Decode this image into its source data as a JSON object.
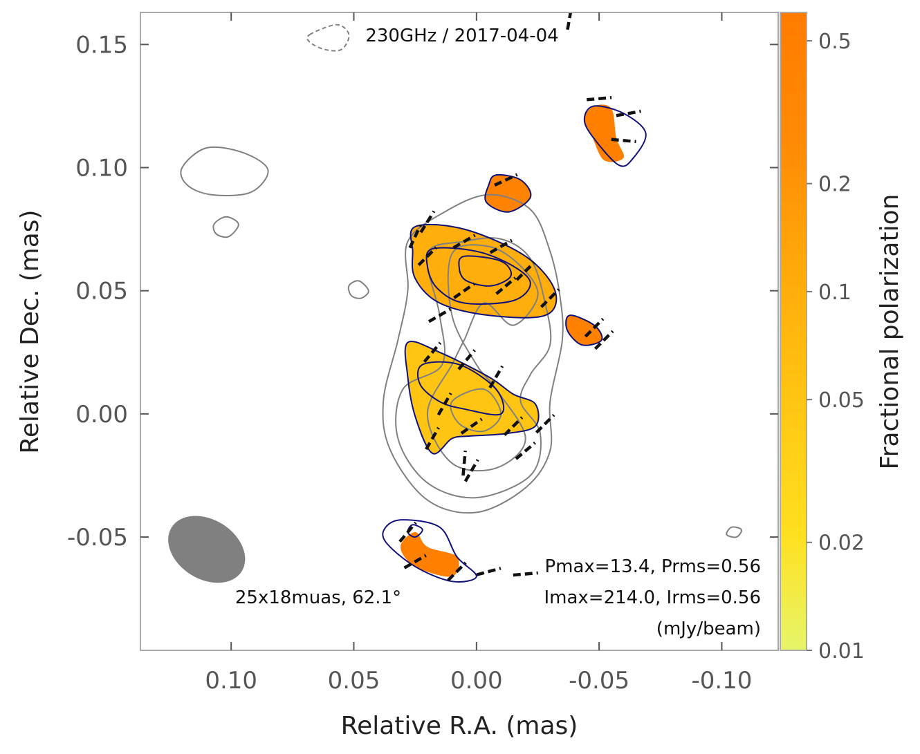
{
  "chart_data": {
    "type": "polarization_map",
    "title": "230GHz / 2017-04-04",
    "xlabel": "Relative R.A. (mas)",
    "ylabel": "Relative Dec. (mas)",
    "xlim": [
      0.137,
      -0.123
    ],
    "ylim": [
      -0.096,
      0.163
    ],
    "xticks": [
      0.1,
      0.05,
      0.0,
      -0.05,
      -0.1
    ],
    "xtick_labels": [
      "0.10",
      "0.05",
      "0.00",
      "-0.05",
      "-0.10"
    ],
    "yticks": [
      0.15,
      0.1,
      0.05,
      0.0,
      -0.05
    ],
    "ytick_labels": [
      "0.15",
      "0.10",
      "0.05",
      "0.00",
      "-0.05"
    ],
    "colorbar": {
      "label": "Fractional polarization",
      "scale": "log",
      "range": [
        0.01,
        0.6
      ],
      "ticks": [
        0.01,
        0.02,
        0.05,
        0.1,
        0.2,
        0.5
      ],
      "tick_labels": [
        "0.01",
        "0.02",
        "0.05",
        "0.1",
        "0.2",
        "0.5"
      ],
      "colors": [
        "#e6f56a",
        "#ffe020",
        "#ffc412",
        "#ffa90a",
        "#ff8a05",
        "#ff7c00"
      ]
    },
    "beam": {
      "label": "25x18muas, 62.1°",
      "major_muas": 25,
      "minor_muas": 18,
      "pa_deg": 62.1,
      "center": [
        0.11,
        -0.055
      ]
    },
    "stats": {
      "line1": "Pmax=13.4, Prms=0.56",
      "line2": "Imax=214.0, Irms=0.56",
      "line3": "(mJy/beam)"
    },
    "total_intensity_contours": [
      {
        "color": "#808080",
        "points": [
          [
            0.028,
            0.07
          ],
          [
            0.013,
            0.082
          ],
          [
            -0.005,
            0.089
          ],
          [
            -0.022,
            0.083
          ],
          [
            -0.03,
            0.066
          ],
          [
            -0.034,
            0.048
          ],
          [
            -0.035,
            0.03
          ],
          [
            -0.03,
            0.005
          ],
          [
            -0.03,
            -0.015
          ],
          [
            -0.02,
            -0.03
          ],
          [
            0.0,
            -0.04
          ],
          [
            0.02,
            -0.035
          ],
          [
            0.035,
            -0.015
          ],
          [
            0.038,
            0.005
          ],
          [
            0.032,
            0.03
          ],
          [
            0.028,
            0.05
          ]
        ]
      },
      {
        "color": "#808080",
        "points": [
          [
            0.02,
            0.065
          ],
          [
            0.005,
            0.07
          ],
          [
            -0.01,
            0.071
          ],
          [
            -0.022,
            0.063
          ],
          [
            -0.028,
            0.045
          ],
          [
            -0.03,
            0.028
          ],
          [
            -0.022,
            0.016
          ],
          [
            -0.018,
            0.005
          ],
          [
            -0.026,
            -0.008
          ],
          [
            -0.022,
            -0.025
          ],
          [
            0.0,
            -0.034
          ],
          [
            0.02,
            -0.028
          ],
          [
            0.032,
            -0.01
          ],
          [
            0.03,
            0.01
          ],
          [
            0.014,
            0.02
          ],
          [
            0.015,
            0.04
          ]
        ]
      },
      {
        "color": "#808080",
        "points": [
          [
            0.01,
            0.065
          ],
          [
            -0.005,
            0.068
          ],
          [
            -0.018,
            0.06
          ],
          [
            -0.025,
            0.048
          ],
          [
            -0.015,
            0.036
          ],
          [
            -0.003,
            0.045
          ],
          [
            0.005,
            0.03
          ],
          [
            0.01,
            0.02
          ],
          [
            0.02,
            0.0
          ],
          [
            0.01,
            -0.02
          ],
          [
            -0.008,
            -0.022
          ],
          [
            -0.02,
            -0.01
          ],
          [
            -0.008,
            0.01
          ],
          [
            0.0,
            0.02
          ],
          [
            0.01,
            0.04
          ]
        ]
      },
      {
        "color": "#808080",
        "points": [
          [
            0.01,
            0.005
          ],
          [
            -0.003,
            0.01
          ],
          [
            -0.01,
            0.0
          ],
          [
            -0.003,
            -0.007
          ],
          [
            0.007,
            -0.004
          ]
        ]
      },
      {
        "color": "#808080",
        "points": [
          [
            0.12,
            0.1
          ],
          [
            0.11,
            0.108
          ],
          [
            0.095,
            0.106
          ],
          [
            0.085,
            0.099
          ],
          [
            0.092,
            0.09
          ],
          [
            0.108,
            0.089
          ],
          [
            0.118,
            0.093
          ]
        ]
      },
      {
        "color": "#808080",
        "points": [
          [
            0.107,
            0.077
          ],
          [
            0.102,
            0.08
          ],
          [
            0.097,
            0.077
          ],
          [
            0.101,
            0.072
          ],
          [
            0.106,
            0.073
          ]
        ]
      },
      {
        "color": "#808080",
        "points": [
          [
            0.052,
            0.052
          ],
          [
            0.048,
            0.054
          ],
          [
            0.044,
            0.05
          ],
          [
            0.047,
            0.047
          ],
          [
            0.051,
            0.048
          ]
        ]
      },
      {
        "color": "#808080",
        "points": [
          [
            -0.104,
            -0.046
          ],
          [
            -0.108,
            -0.047
          ],
          [
            -0.106,
            -0.05
          ],
          [
            -0.102,
            -0.049
          ]
        ]
      }
    ],
    "polarized_intensity_contours": [
      {
        "color": "#10107a",
        "points": [
          [
            0.025,
            0.076
          ],
          [
            0.005,
            0.075
          ],
          [
            -0.02,
            0.064
          ],
          [
            -0.032,
            0.05
          ],
          [
            -0.028,
            0.04
          ],
          [
            -0.005,
            0.04
          ],
          [
            0.015,
            0.045
          ],
          [
            0.025,
            0.055
          ],
          [
            0.026,
            0.066
          ]
        ]
      },
      {
        "color": "#10107a",
        "points": [
          [
            0.018,
            0.067
          ],
          [
            0.0,
            0.066
          ],
          [
            -0.015,
            0.06
          ],
          [
            -0.022,
            0.053
          ],
          [
            -0.015,
            0.046
          ],
          [
            0.005,
            0.045
          ],
          [
            0.016,
            0.051
          ],
          [
            0.02,
            0.06
          ]
        ]
      },
      {
        "color": "#10107a",
        "points": [
          [
            0.005,
            0.064
          ],
          [
            -0.01,
            0.062
          ],
          [
            -0.014,
            0.056
          ],
          [
            -0.006,
            0.052
          ],
          [
            0.004,
            0.054
          ],
          [
            0.007,
            0.059
          ]
        ]
      },
      {
        "color": "#10107a",
        "points": [
          [
            0.028,
            0.029
          ],
          [
            0.015,
            0.025
          ],
          [
            -0.005,
            0.015
          ],
          [
            -0.015,
            0.008
          ],
          [
            -0.024,
            0.004
          ],
          [
            -0.024,
            -0.005
          ],
          [
            -0.012,
            -0.008
          ],
          [
            0.003,
            -0.009
          ],
          [
            0.01,
            -0.01
          ],
          [
            0.018,
            -0.016
          ],
          [
            0.025,
            -0.001
          ],
          [
            0.028,
            0.015
          ]
        ]
      },
      {
        "color": "#10107a",
        "points": [
          [
            0.022,
            0.02
          ],
          [
            0.007,
            0.02
          ],
          [
            -0.008,
            0.01
          ],
          [
            -0.01,
            0.0
          ],
          [
            0.005,
            0.002
          ],
          [
            0.015,
            0.005
          ],
          [
            0.023,
            0.012
          ]
        ]
      },
      {
        "color": "#10107a",
        "points": [
          [
            -0.008,
            0.097
          ],
          [
            -0.018,
            0.095
          ],
          [
            -0.022,
            0.088
          ],
          [
            -0.013,
            0.082
          ],
          [
            -0.004,
            0.086
          ],
          [
            -0.005,
            0.093
          ]
        ]
      },
      {
        "color": "#10107a",
        "points": [
          [
            -0.048,
            0.125
          ],
          [
            -0.06,
            0.122
          ],
          [
            -0.069,
            0.114
          ],
          [
            -0.064,
            0.104
          ],
          [
            -0.058,
            0.101
          ],
          [
            -0.047,
            0.113
          ],
          [
            -0.044,
            0.12
          ]
        ]
      },
      {
        "color": "#10107a",
        "points": [
          [
            -0.038,
            0.04
          ],
          [
            -0.048,
            0.036
          ],
          [
            -0.051,
            0.03
          ],
          [
            -0.043,
            0.028
          ],
          [
            -0.037,
            0.034
          ]
        ]
      },
      {
        "color": "#10107a",
        "points": [
          [
            0.03,
            -0.043
          ],
          [
            0.015,
            -0.046
          ],
          [
            0.008,
            -0.058
          ],
          [
            0.0,
            -0.066
          ],
          [
            0.01,
            -0.068
          ],
          [
            0.025,
            -0.062
          ],
          [
            0.037,
            -0.052
          ],
          [
            0.037,
            -0.046
          ]
        ]
      },
      {
        "color": "#10107a",
        "points": [
          [
            0.026,
            -0.045
          ],
          [
            0.022,
            -0.047
          ],
          [
            0.025,
            -0.05
          ],
          [
            0.028,
            -0.048
          ]
        ]
      }
    ],
    "fractional_pol_regions": [
      {
        "frac": 0.1,
        "points": [
          [
            0.025,
            0.076
          ],
          [
            0.005,
            0.075
          ],
          [
            -0.02,
            0.064
          ],
          [
            -0.032,
            0.05
          ],
          [
            -0.028,
            0.04
          ],
          [
            -0.005,
            0.04
          ],
          [
            0.015,
            0.045
          ],
          [
            0.025,
            0.055
          ],
          [
            0.026,
            0.066
          ]
        ]
      },
      {
        "frac": 0.05,
        "points": [
          [
            0.028,
            0.029
          ],
          [
            0.015,
            0.025
          ],
          [
            -0.005,
            0.015
          ],
          [
            -0.015,
            0.008
          ],
          [
            -0.024,
            0.004
          ],
          [
            -0.024,
            -0.005
          ],
          [
            -0.012,
            -0.008
          ],
          [
            0.003,
            -0.009
          ],
          [
            0.01,
            -0.01
          ],
          [
            0.018,
            -0.016
          ],
          [
            0.025,
            -0.001
          ],
          [
            0.028,
            0.015
          ]
        ]
      },
      {
        "frac": 0.4,
        "points": [
          [
            -0.008,
            0.097
          ],
          [
            -0.018,
            0.095
          ],
          [
            -0.022,
            0.088
          ],
          [
            -0.013,
            0.082
          ],
          [
            -0.004,
            0.086
          ],
          [
            -0.005,
            0.093
          ]
        ]
      },
      {
        "frac": 0.5,
        "points": [
          [
            -0.048,
            0.125
          ],
          [
            -0.055,
            0.124
          ],
          [
            -0.057,
            0.112
          ],
          [
            -0.06,
            0.104
          ],
          [
            -0.052,
            0.103
          ],
          [
            -0.047,
            0.113
          ],
          [
            -0.044,
            0.12
          ]
        ]
      },
      {
        "frac": 0.45,
        "points": [
          [
            -0.038,
            0.04
          ],
          [
            -0.048,
            0.036
          ],
          [
            -0.051,
            0.03
          ],
          [
            -0.043,
            0.028
          ],
          [
            -0.037,
            0.034
          ]
        ]
      },
      {
        "frac": 0.5,
        "points": [
          [
            0.025,
            -0.048
          ],
          [
            0.02,
            -0.054
          ],
          [
            0.008,
            -0.058
          ],
          [
            0.01,
            -0.066
          ],
          [
            0.025,
            -0.062
          ],
          [
            0.031,
            -0.054
          ]
        ]
      }
    ],
    "evpa_ticks": [
      {
        "x": 0.02,
        "y": 0.078,
        "angle": -58
      },
      {
        "x": 0.005,
        "y": 0.07,
        "angle": -30
      },
      {
        "x": -0.01,
        "y": 0.068,
        "angle": -30
      },
      {
        "x": -0.02,
        "y": 0.058,
        "angle": -45
      },
      {
        "x": 0.02,
        "y": 0.064,
        "angle": -45
      },
      {
        "x": 0.005,
        "y": 0.05,
        "angle": -35
      },
      {
        "x": -0.012,
        "y": 0.052,
        "angle": -40
      },
      {
        "x": 0.015,
        "y": 0.04,
        "angle": -30
      },
      {
        "x": -0.03,
        "y": 0.047,
        "angle": -45
      },
      {
        "x": 0.018,
        "y": 0.025,
        "angle": -50
      },
      {
        "x": 0.004,
        "y": 0.022,
        "angle": -50
      },
      {
        "x": -0.008,
        "y": 0.015,
        "angle": -60
      },
      {
        "x": 0.013,
        "y": 0.004,
        "angle": -60
      },
      {
        "x": 0.002,
        "y": -0.005,
        "angle": -35
      },
      {
        "x": -0.015,
        "y": -0.005,
        "angle": -45
      },
      {
        "x": -0.028,
        "y": -0.004,
        "angle": -45
      },
      {
        "x": 0.018,
        "y": -0.01,
        "angle": -60
      },
      {
        "x": 0.005,
        "y": -0.02,
        "angle": -85
      },
      {
        "x": -0.02,
        "y": -0.015,
        "angle": -40
      },
      {
        "x": 0.002,
        "y": -0.023,
        "angle": -60
      },
      {
        "x": -0.012,
        "y": 0.095,
        "angle": -25
      },
      {
        "x": -0.05,
        "y": 0.128,
        "angle": -5
      },
      {
        "x": -0.062,
        "y": 0.122,
        "angle": -10
      },
      {
        "x": -0.06,
        "y": 0.111,
        "angle": 5
      },
      {
        "x": -0.048,
        "y": 0.035,
        "angle": -45
      },
      {
        "x": -0.052,
        "y": 0.03,
        "angle": -45
      },
      {
        "x": 0.028,
        "y": -0.048,
        "angle": -50
      },
      {
        "x": 0.025,
        "y": -0.06,
        "angle": -30
      },
      {
        "x": 0.008,
        "y": -0.064,
        "angle": -45
      },
      {
        "x": -0.005,
        "y": -0.064,
        "angle": -15
      },
      {
        "x": -0.02,
        "y": -0.065,
        "angle": -5
      },
      {
        "x": 0.025,
        "y": 0.072,
        "angle": -65
      },
      {
        "x": -0.038,
        "y": 0.161,
        "angle": -80
      }
    ],
    "negative_contours": [
      {
        "color": "#808080",
        "points": [
          [
            0.068,
            0.154
          ],
          [
            0.057,
            0.158
          ],
          [
            0.052,
            0.154
          ],
          [
            0.055,
            0.148
          ],
          [
            0.062,
            0.148
          ],
          [
            0.068,
            0.151
          ]
        ]
      }
    ]
  }
}
